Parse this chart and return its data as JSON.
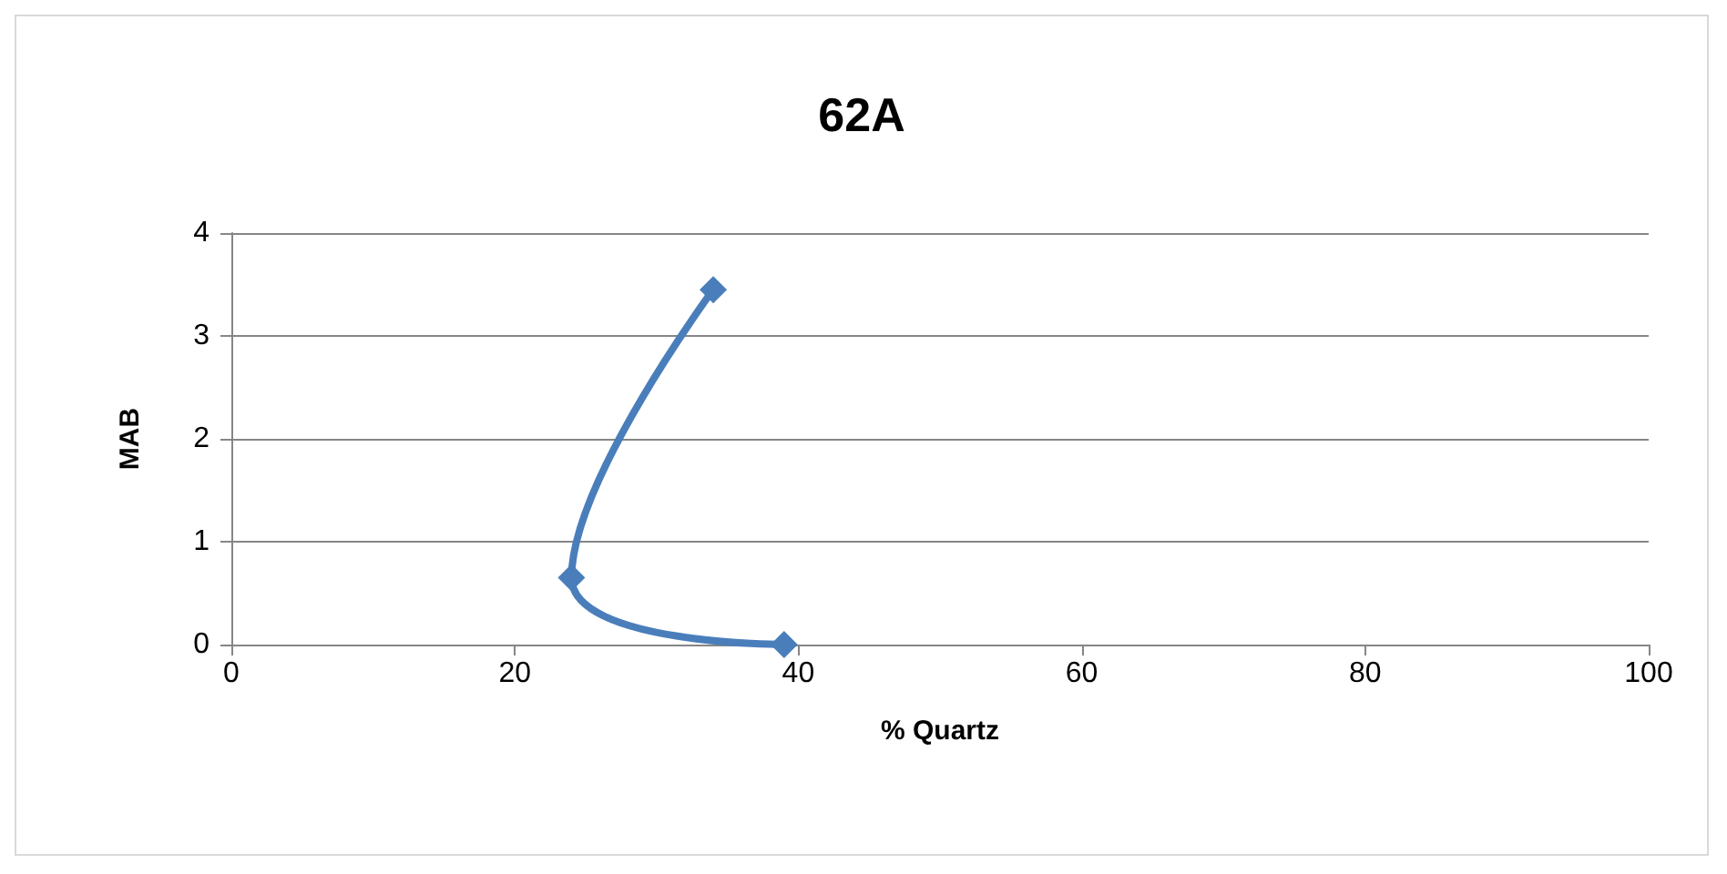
{
  "chart_data": {
    "type": "line",
    "title": "62A",
    "xlabel": "% Quartz",
    "ylabel": "MAB",
    "x": [
      34,
      24,
      39
    ],
    "series": [
      {
        "color": "#4a7ebb",
        "values": [
          3.45,
          0.65,
          0
        ]
      }
    ],
    "xlim": [
      0,
      100
    ],
    "xticks": [
      0,
      20,
      40,
      60,
      80,
      100
    ],
    "ylim": [
      0,
      4
    ],
    "yticks": [
      0,
      1,
      2,
      3,
      4
    ],
    "grid": "y",
    "marker": "diamond",
    "line_style": "solid"
  }
}
